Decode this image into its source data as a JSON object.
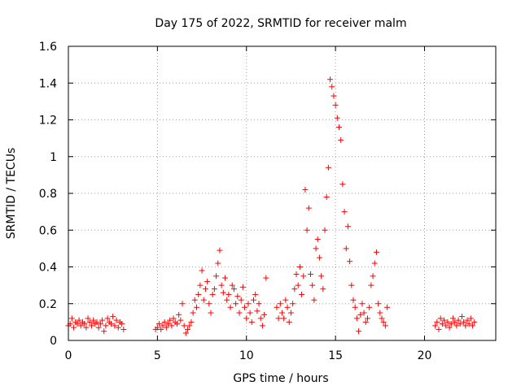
{
  "chart_data": {
    "type": "scatter",
    "title": "Day 175 of 2022, SRMTID for receiver malm",
    "xlabel": "GPS time / hours",
    "ylabel": "SRMTID / TECUs",
    "xlim": [
      0,
      24
    ],
    "ylim": [
      0,
      1.6
    ],
    "grid": true,
    "marker": "+",
    "color": "#ff0000",
    "x_ticks": [
      {
        "value": 0,
        "label": "0"
      },
      {
        "value": 5,
        "label": "5"
      },
      {
        "value": 10,
        "label": "10"
      },
      {
        "value": 15,
        "label": "15"
      },
      {
        "value": 20,
        "label": "20"
      }
    ],
    "y_ticks": [
      {
        "value": 0,
        "label": "0"
      },
      {
        "value": 0.2,
        "label": "0.2"
      },
      {
        "value": 0.4,
        "label": "0.4"
      },
      {
        "value": 0.6,
        "label": "0.6"
      },
      {
        "value": 0.8,
        "label": "0.8"
      },
      {
        "value": 1.0,
        "label": "1"
      },
      {
        "value": 1.2,
        "label": "1.2"
      },
      {
        "value": 1.4,
        "label": "1.4"
      },
      {
        "value": 1.6,
        "label": "1.6"
      }
    ],
    "series": [
      {
        "name": "SRMTID",
        "x": [
          0.0,
          0.1,
          0.2,
          0.3,
          0.4,
          0.5,
          0.6,
          0.7,
          0.8,
          0.9,
          1.0,
          1.1,
          1.2,
          1.3,
          1.4,
          1.5,
          1.6,
          1.7,
          1.8,
          1.9,
          2.0,
          2.1,
          2.2,
          2.3,
          2.4,
          2.5,
          2.6,
          2.7,
          2.8,
          2.9,
          3.0,
          3.1,
          4.9,
          5.0,
          5.1,
          5.2,
          5.3,
          5.4,
          5.5,
          5.6,
          5.7,
          5.8,
          5.9,
          6.0,
          6.1,
          6.2,
          6.3,
          6.4,
          6.5,
          6.6,
          6.7,
          6.8,
          6.9,
          7.0,
          7.1,
          7.2,
          7.3,
          7.4,
          7.5,
          7.6,
          7.7,
          7.8,
          7.9,
          8.0,
          8.1,
          8.2,
          8.3,
          8.4,
          8.5,
          8.6,
          8.7,
          8.8,
          8.9,
          9.0,
          9.1,
          9.2,
          9.3,
          9.4,
          9.5,
          9.6,
          9.7,
          9.8,
          9.9,
          10.0,
          10.1,
          10.2,
          10.3,
          10.4,
          10.5,
          10.6,
          10.7,
          10.8,
          10.9,
          11.0,
          11.1,
          11.7,
          11.8,
          11.9,
          12.0,
          12.1,
          12.2,
          12.3,
          12.4,
          12.5,
          12.6,
          12.7,
          12.8,
          12.9,
          13.0,
          13.1,
          13.2,
          13.3,
          13.4,
          13.5,
          13.6,
          13.7,
          13.8,
          13.9,
          14.0,
          14.1,
          14.2,
          14.3,
          14.4,
          14.5,
          14.6,
          14.7,
          14.8,
          14.9,
          15.0,
          15.1,
          15.2,
          15.3,
          15.4,
          15.5,
          15.6,
          15.7,
          15.8,
          15.9,
          16.0,
          16.1,
          16.2,
          16.3,
          16.4,
          16.5,
          16.6,
          16.7,
          16.8,
          16.9,
          17.0,
          17.1,
          17.2,
          17.3,
          17.4,
          17.5,
          17.6,
          17.7,
          17.8,
          17.9,
          20.6,
          20.7,
          20.8,
          20.9,
          21.0,
          21.1,
          21.2,
          21.3,
          21.4,
          21.5,
          21.6,
          21.7,
          21.8,
          21.9,
          22.0,
          22.1,
          22.2,
          22.3,
          22.4,
          22.5,
          22.6,
          22.7,
          22.8
        ],
        "y": [
          0.08,
          0.09,
          0.12,
          0.07,
          0.1,
          0.09,
          0.11,
          0.08,
          0.1,
          0.09,
          0.07,
          0.12,
          0.1,
          0.08,
          0.11,
          0.09,
          0.1,
          0.07,
          0.09,
          0.11,
          0.05,
          0.08,
          0.12,
          0.1,
          0.09,
          0.13,
          0.08,
          0.11,
          0.07,
          0.1,
          0.09,
          0.06,
          0.06,
          0.07,
          0.09,
          0.06,
          0.08,
          0.1,
          0.07,
          0.09,
          0.11,
          0.08,
          0.12,
          0.1,
          0.09,
          0.14,
          0.11,
          0.2,
          0.08,
          0.04,
          0.06,
          0.08,
          0.1,
          0.15,
          0.22,
          0.18,
          0.25,
          0.3,
          0.38,
          0.22,
          0.28,
          0.32,
          0.2,
          0.15,
          0.25,
          0.28,
          0.35,
          0.42,
          0.49,
          0.3,
          0.26,
          0.34,
          0.22,
          0.25,
          0.18,
          0.3,
          0.28,
          0.2,
          0.24,
          0.15,
          0.22,
          0.29,
          0.18,
          0.12,
          0.2,
          0.15,
          0.1,
          0.22,
          0.25,
          0.16,
          0.2,
          0.12,
          0.08,
          0.14,
          0.34,
          0.18,
          0.12,
          0.2,
          0.15,
          0.12,
          0.22,
          0.18,
          0.1,
          0.15,
          0.2,
          0.28,
          0.36,
          0.3,
          0.4,
          0.25,
          0.35,
          0.82,
          0.6,
          0.72,
          0.36,
          0.3,
          0.22,
          0.5,
          0.55,
          0.45,
          0.35,
          0.28,
          0.6,
          0.78,
          0.94,
          1.42,
          1.38,
          1.33,
          1.28,
          1.21,
          1.16,
          1.09,
          0.85,
          0.7,
          0.5,
          0.62,
          0.43,
          0.3,
          0.22,
          0.18,
          0.12,
          0.05,
          0.14,
          0.2,
          0.15,
          0.1,
          0.12,
          0.18,
          0.3,
          0.35,
          0.42,
          0.48,
          0.2,
          0.15,
          0.12,
          0.1,
          0.08,
          0.18,
          0.08,
          0.1,
          0.06,
          0.12,
          0.09,
          0.11,
          0.08,
          0.1,
          0.07,
          0.09,
          0.12,
          0.1,
          0.08,
          0.11,
          0.09,
          0.13,
          0.1,
          0.08,
          0.11,
          0.09,
          0.12,
          0.08,
          0.1
        ]
      }
    ]
  }
}
